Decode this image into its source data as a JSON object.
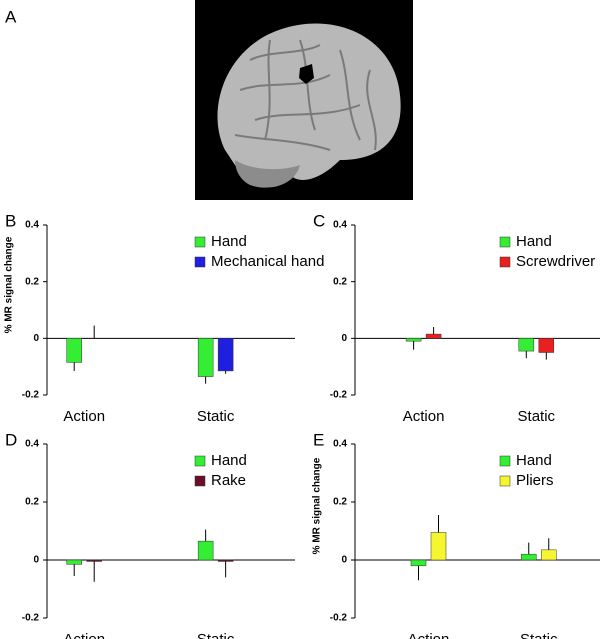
{
  "image_panel": {
    "label": "A"
  },
  "chart_data": [
    {
      "type": "bar",
      "panel": "B",
      "y_label": "% MR signal change",
      "categories": [
        "Action",
        "Static"
      ],
      "series": [
        {
          "name": "Hand",
          "color": "#33ee33",
          "values": [
            -0.085,
            -0.135
          ],
          "errors": [
            0.03,
            0.025
          ]
        },
        {
          "name": "Mechanical hand",
          "color": "#1f1fe0",
          "values": [
            0.0,
            -0.115
          ],
          "errors": [
            0.045,
            0.01
          ]
        }
      ],
      "ylim": [
        -0.2,
        0.4
      ],
      "yticks": [
        -0.2,
        0,
        0.2,
        0.4
      ],
      "legend": "upper right"
    },
    {
      "type": "bar",
      "panel": "C",
      "categories": [
        "Action",
        "Static"
      ],
      "series": [
        {
          "name": "Hand",
          "color": "#33ee33",
          "values": [
            -0.01,
            -0.045
          ],
          "errors": [
            0.03,
            0.025
          ]
        },
        {
          "name": "Screwdriver",
          "color": "#e82020",
          "values": [
            0.015,
            -0.05
          ],
          "errors": [
            0.025,
            0.025
          ]
        }
      ],
      "ylim": [
        -0.2,
        0.4
      ],
      "yticks": [
        -0.2,
        0,
        0.2,
        0.4
      ],
      "legend": "upper right"
    },
    {
      "type": "bar",
      "panel": "D",
      "categories": [
        "Action",
        "Static"
      ],
      "series": [
        {
          "name": "Hand",
          "color": "#33ee33",
          "values": [
            -0.015,
            0.065
          ],
          "errors": [
            0.04,
            0.04
          ]
        },
        {
          "name": "Rake",
          "color": "#6b0f26",
          "values": [
            -0.005,
            -0.005
          ],
          "errors": [
            0.07,
            0.055
          ]
        }
      ],
      "ylim": [
        -0.2,
        0.4
      ],
      "yticks": [
        -0.2,
        0,
        0.2,
        0.4
      ],
      "legend": "upper right"
    },
    {
      "type": "bar",
      "panel": "E",
      "y_label": "% MR signal change",
      "categories": [
        "Action",
        "Static"
      ],
      "series": [
        {
          "name": "Hand",
          "color": "#33ee33",
          "values": [
            -0.02,
            0.02
          ],
          "errors": [
            0.05,
            0.04
          ]
        },
        {
          "name": "Pliers",
          "color": "#f5f530",
          "values": [
            0.095,
            0.035
          ],
          "errors": [
            0.06,
            0.04
          ]
        }
      ],
      "ylim": [
        -0.2,
        0.4
      ],
      "yticks": [
        -0.2,
        0,
        0.2,
        0.4
      ],
      "legend": "upper right"
    }
  ]
}
